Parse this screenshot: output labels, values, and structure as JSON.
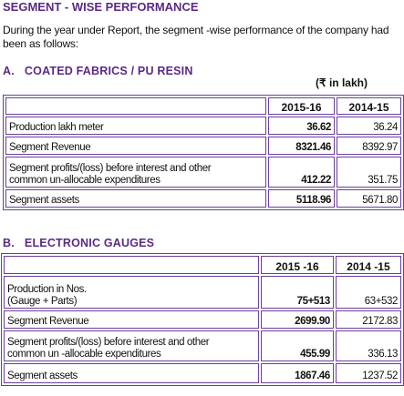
{
  "header": {
    "title": "SEGMENT - WISE PERFORMANCE"
  },
  "intro": "During the year under Report, the segment -wise performance of the company had been as follows:",
  "sections": [
    {
      "label": "A.   COATED FABRICS / PU RESIN",
      "unit": "(₹ in lakh)",
      "columns": [
        "2015-16",
        "2014-15"
      ],
      "rows": [
        {
          "label": [
            "Production lakh meter"
          ],
          "values": [
            "36.62",
            "36.24"
          ]
        },
        {
          "label": [
            "Segment Revenue"
          ],
          "values": [
            "8321.46",
            "8392.97"
          ]
        },
        {
          "label": [
            "Segment profits/(loss) before interest and other",
            "common un-allocable expenditures"
          ],
          "values": [
            "412.22",
            "351.75"
          ]
        },
        {
          "label": [
            "Segment assets"
          ],
          "values": [
            "5118.96",
            "5671.80"
          ]
        }
      ]
    },
    {
      "label": "B.   ELECTRONIC GAUGES",
      "columns": [
        "2015 -16",
        "2014 -15"
      ],
      "rows": [
        {
          "label": [
            "Production in Nos.",
            "(Gauge + Parts)"
          ],
          "values": [
            "75+513",
            "63+532"
          ]
        },
        {
          "label": [
            "Segment Revenue"
          ],
          "values": [
            "2699.90",
            "2172.83"
          ]
        },
        {
          "label": [
            "Segment profits/(loss) before interest and other",
            "common un -allocable expenditures"
          ],
          "values": [
            "455.99",
            "336.13"
          ]
        },
        {
          "label": [
            "Segment assets"
          ],
          "values": [
            "1867.46",
            "1237.52"
          ]
        }
      ]
    }
  ]
}
